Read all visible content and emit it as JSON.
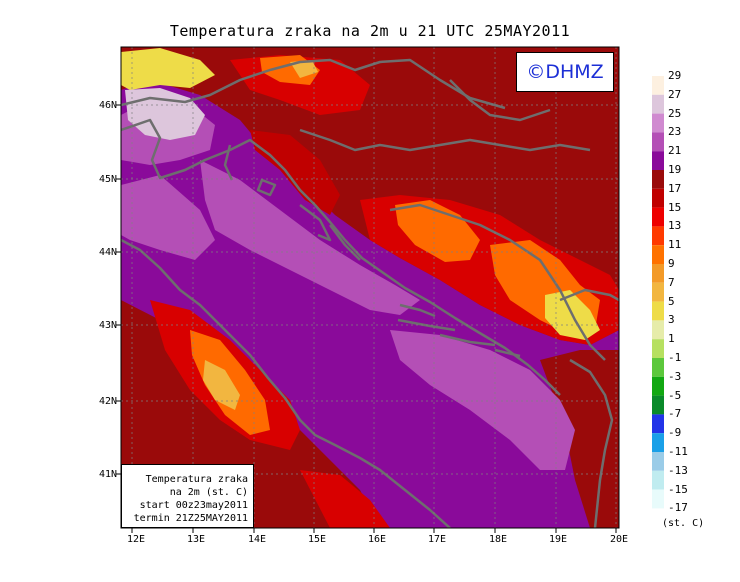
{
  "title": "Temperatura zraka na 2m u 21 UTC 25MAY2011",
  "logo": "©DHMZ",
  "info": {
    "line1": "Temperatura zraka",
    "line2": "na 2m (st. C)",
    "line3": "start 00z23may2011",
    "line4": "termin 21Z25MAY2011"
  },
  "lat_labels": [
    "46N",
    "45N",
    "44N",
    "43N",
    "42N",
    "41N"
  ],
  "lon_labels": [
    "12E",
    "13E",
    "14E",
    "15E",
    "16E",
    "17E",
    "18E",
    "19E",
    "20E"
  ],
  "legend": {
    "labels": [
      "29",
      "27",
      "25",
      "23",
      "21",
      "19",
      "17",
      "15",
      "13",
      "11",
      "9",
      "7",
      "5",
      "3",
      "1",
      "-1",
      "-3",
      "-5",
      "-7",
      "-9",
      "-11",
      "-13",
      "-15",
      "-17"
    ],
    "colors": [
      "#fdf0e0",
      "#ddc6dc",
      "#d08ad0",
      "#b44fb6",
      "#8a0a9a",
      "#9a0a0a",
      "#c00000",
      "#ee0000",
      "#ff3a00",
      "#ff7200",
      "#f39a28",
      "#f2b640",
      "#eedc48",
      "#e6ecaa",
      "#b6e060",
      "#5cc83c",
      "#12a812",
      "#0a8a2a",
      "#2234e8",
      "#1aa0e8",
      "#9acce8",
      "#c0ecf0",
      "#e8fbfb"
    ],
    "unit": "(st. C)"
  },
  "colors": {
    "coast": "#6e6e6e",
    "logo_text": "#1c2fd6"
  }
}
